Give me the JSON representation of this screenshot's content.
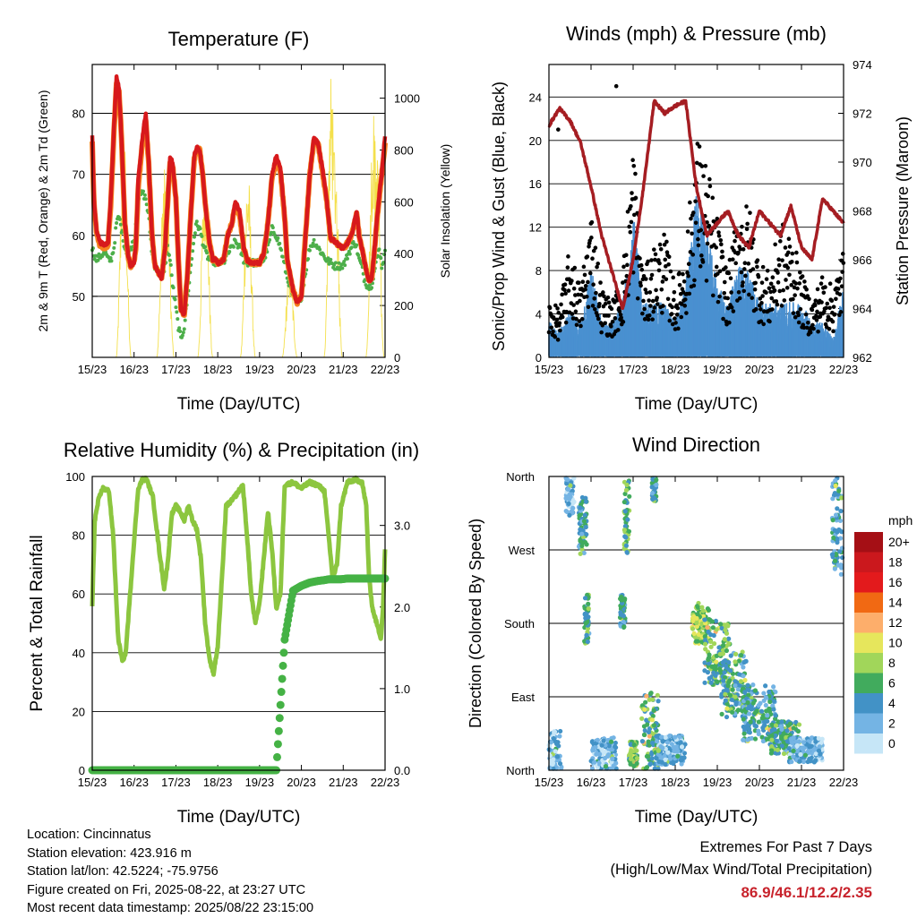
{
  "colors": {
    "temp_red": "#d7191c",
    "temp_orange": "#f58220",
    "dewpoint_green": "#4daf4a",
    "solar_yellow": "#f4e04d",
    "wind_blue": "#4a90d0",
    "gust_black": "#000000",
    "pressure_maroon": "#a51d22",
    "rh_green": "#8cc63f",
    "precip_green": "#45b245",
    "extremes_red": "#c8232c"
  },
  "time_ticks": [
    "15/23",
    "16/23",
    "17/23",
    "18/23",
    "19/23",
    "20/23",
    "21/23",
    "22/23"
  ],
  "chart_data": [
    {
      "id": "temperature",
      "type": "line",
      "title": "Temperature (F)",
      "xlabel": "Time (Day/UTC)",
      "ylabel": "2m & 9m T (Red, Orange) & 2m Td (Green)",
      "y2label": "Solar Insolation (Yellow)",
      "ylim": [
        40,
        88
      ],
      "yticks": [
        50,
        60,
        70,
        80
      ],
      "y2lim": [
        0,
        1130
      ],
      "y2ticks": [
        0,
        200,
        400,
        600,
        800,
        1000
      ],
      "x_day_offsets": [
        0,
        0.04,
        0.1,
        0.18,
        0.25,
        0.32,
        0.38,
        0.45,
        0.52,
        0.58,
        0.64,
        0.7,
        0.78,
        0.86,
        0.92,
        1.0,
        1.04,
        1.1,
        1.2,
        1.28,
        1.35,
        1.43,
        1.5,
        1.58,
        1.66,
        1.74,
        1.8,
        1.86,
        1.92,
        2.0,
        2.06,
        2.12,
        2.2,
        2.28,
        2.36,
        2.44,
        2.5,
        2.57,
        2.64,
        2.72,
        2.8,
        2.88,
        2.94,
        3.0,
        3.06,
        3.14,
        3.24,
        3.34,
        3.42,
        3.52,
        3.62,
        3.7,
        3.8,
        3.9,
        4.0,
        4.1,
        4.2,
        4.3,
        4.4,
        4.5,
        4.6,
        4.66,
        4.72,
        4.8,
        4.9,
        5.0,
        5.1,
        5.2,
        5.3,
        5.4,
        5.5,
        5.6,
        5.7,
        5.8,
        5.88,
        5.96,
        6.04,
        6.12,
        6.2,
        6.26,
        6.32,
        6.38,
        6.44,
        6.5,
        6.56,
        6.62,
        6.68,
        6.74,
        6.8,
        6.86,
        6.92,
        7.0
      ],
      "series": [
        {
          "name": "2m T",
          "values": [
            76.5,
            66,
            61,
            59,
            58.5,
            58.5,
            59,
            67,
            78,
            86,
            84,
            76,
            62,
            56.5,
            55,
            55.5,
            58,
            69,
            76,
            80,
            72,
            60,
            55,
            54,
            53,
            58,
            65,
            72.5,
            72,
            66,
            56,
            48,
            47,
            54,
            64,
            73,
            74.5,
            74,
            70,
            64,
            59,
            56,
            56,
            55.5,
            55.5,
            56,
            60,
            62,
            65.5,
            64,
            58,
            56,
            55.5,
            55.5,
            55.5,
            57,
            62,
            70,
            73,
            71,
            63,
            56,
            54,
            51,
            49,
            50,
            60,
            70,
            76,
            75,
            71,
            66,
            59.5,
            59,
            58.5,
            58,
            58,
            59,
            60,
            62,
            64,
            60,
            58,
            56,
            54,
            52.5,
            53,
            57,
            62,
            66.5,
            70,
            76.5
          ]
        },
        {
          "name": "9m T",
          "values": [
            75.5,
            65.5,
            60.5,
            58.5,
            58,
            58,
            58.5,
            66,
            77,
            85,
            83.5,
            76,
            62,
            56.5,
            55,
            55.5,
            57.5,
            68,
            75,
            79,
            71.5,
            60,
            55,
            54,
            53,
            58,
            65,
            72,
            71.5,
            66,
            56,
            48,
            47,
            54,
            64,
            72.5,
            74,
            74,
            70,
            64,
            59,
            56,
            56,
            55.5,
            55.5,
            56,
            60,
            62,
            65,
            63.5,
            58,
            56,
            55.5,
            55.5,
            55.5,
            57,
            62,
            69.5,
            72.5,
            70.5,
            63,
            56,
            54,
            51,
            49,
            50,
            60,
            70,
            75.5,
            75,
            70.5,
            66,
            59.5,
            59,
            58.5,
            58,
            58,
            59,
            60,
            62,
            63.5,
            60,
            58,
            56,
            54,
            52.5,
            53,
            57,
            62,
            66,
            70,
            75
          ]
        },
        {
          "name": "2m Td",
          "values": [
            58,
            57,
            56,
            56.5,
            57,
            57,
            56,
            56,
            58,
            62,
            63,
            61,
            58,
            57,
            58,
            59,
            62,
            66,
            67,
            66,
            63,
            57,
            55,
            54,
            53,
            55,
            58,
            56,
            52,
            48,
            45,
            43,
            45,
            50,
            55,
            60,
            62,
            61,
            59,
            57,
            56,
            56,
            55.5,
            55.5,
            55.5,
            55.5,
            57,
            58,
            59,
            58,
            56,
            55.5,
            55.5,
            55.5,
            55.5,
            56,
            58,
            61,
            60,
            58,
            55,
            53,
            52,
            50,
            49,
            50,
            54,
            58,
            59,
            58,
            57,
            56,
            55.5,
            55,
            55,
            55,
            55.5,
            57,
            58,
            59,
            58,
            56,
            55,
            53,
            52,
            51.5,
            52,
            54,
            56,
            58,
            55,
            57
          ]
        }
      ],
      "solar_peaks": [
        {
          "day": 0.75,
          "value": 900
        },
        {
          "day": 1.72,
          "value": 760
        },
        {
          "day": 1.78,
          "value": 650
        },
        {
          "day": 2.7,
          "value": 780
        },
        {
          "day": 3.72,
          "value": 740
        },
        {
          "day": 4.72,
          "value": 380
        },
        {
          "day": 5.72,
          "value": 1110
        },
        {
          "day": 5.8,
          "value": 850
        },
        {
          "day": 6.72,
          "value": 980
        },
        {
          "day": 6.8,
          "value": 820
        }
      ]
    },
    {
      "id": "winds",
      "type": "scatter",
      "title": "Winds (mph) & Pressure (mb)",
      "xlabel": "Time (Day/UTC)",
      "ylabel": "Sonic/Prop Wind & Gust (Blue, Black)",
      "y2label": "Station Pressure (Maroon)",
      "ylim": [
        0,
        27
      ],
      "yticks": [
        0,
        4,
        8,
        12,
        16,
        20,
        24
      ],
      "y2lim": [
        962,
        974
      ],
      "y2ticks": [
        962,
        964,
        966,
        968,
        970,
        972,
        974
      ],
      "x_day_offsets": [
        0,
        0.25,
        0.5,
        0.75,
        1.0,
        1.25,
        1.5,
        1.75,
        2.0,
        2.25,
        2.5,
        2.75,
        3.0,
        3.25,
        3.5,
        3.75,
        4.0,
        4.25,
        4.5,
        4.75,
        5.0,
        5.25,
        5.5,
        5.75,
        6.0,
        6.25,
        6.5,
        6.75,
        7.0
      ],
      "series": [
        {
          "name": "Sonic/Prop Wind",
          "values": [
            2,
            1.5,
            2.5,
            2,
            5,
            2,
            2,
            3,
            8,
            3,
            3,
            3,
            2,
            4,
            9,
            7,
            4,
            3,
            5,
            5,
            3,
            3,
            3,
            3,
            3,
            2,
            2,
            1,
            4
          ]
        },
        {
          "name": "Gust",
          "values": [
            4,
            3.5,
            8,
            5,
            11,
            5,
            4,
            6,
            16,
            6,
            8,
            9,
            5,
            8,
            16,
            14,
            10,
            6,
            11,
            11,
            7,
            6,
            10,
            9,
            6,
            4,
            6,
            5,
            8
          ]
        },
        {
          "name": "Station Pressure",
          "values": [
            971.5,
            972.2,
            971.7,
            970.8,
            969,
            967,
            965.5,
            964,
            966,
            969,
            972.5,
            972,
            972.3,
            972.5,
            969,
            967,
            967.5,
            968,
            967,
            966.5,
            968,
            967.5,
            967,
            968.2,
            966.5,
            966,
            968.5,
            968,
            967.5
          ]
        }
      ]
    },
    {
      "id": "humidity",
      "type": "line",
      "title": "Relative Humidity (%) & Precipitation (in)",
      "xlabel": "Time (Day/UTC)",
      "ylabel": "Percent & Total Rainfall",
      "ylim": [
        0,
        100
      ],
      "yticks": [
        0,
        20,
        40,
        60,
        80,
        100
      ],
      "y2lim": [
        0,
        3.6
      ],
      "y2ticks": [
        "0.0",
        "1.0",
        "2.0",
        "3.0"
      ],
      "x_day_offsets": [
        0,
        0.06,
        0.15,
        0.25,
        0.4,
        0.5,
        0.62,
        0.72,
        0.8,
        0.88,
        1.0,
        1.1,
        1.2,
        1.3,
        1.45,
        1.6,
        1.72,
        1.8,
        1.9,
        2.0,
        2.1,
        2.2,
        2.3,
        2.4,
        2.5,
        2.6,
        2.7,
        2.8,
        2.9,
        3.0,
        3.1,
        3.2,
        3.35,
        3.5,
        3.6,
        3.7,
        3.8,
        3.9,
        4.0,
        4.1,
        4.2,
        4.3,
        4.4,
        4.5,
        4.6,
        4.8,
        5.0,
        5.2,
        5.4,
        5.55,
        5.65,
        5.75,
        5.85,
        5.95,
        6.1,
        6.3,
        6.45,
        6.55,
        6.62,
        6.7,
        6.8,
        6.9,
        6.95,
        7.0
      ],
      "series": [
        {
          "name": "Relative Humidity",
          "values": [
            56,
            85,
            92,
            96,
            95,
            80,
            45,
            37,
            40,
            55,
            78,
            96,
            99,
            99,
            93,
            75,
            62,
            70,
            87,
            90,
            88,
            85,
            90,
            85,
            82,
            72,
            50,
            38,
            33,
            42,
            65,
            90,
            92,
            95,
            97,
            80,
            60,
            50,
            57,
            72,
            88,
            75,
            55,
            60,
            97,
            98,
            96,
            98,
            97,
            95,
            80,
            65,
            70,
            90,
            98,
            99,
            98,
            90,
            65,
            55,
            50,
            45,
            55,
            75
          ]
        },
        {
          "name": "Total Precipitation",
          "values": [
            0,
            0,
            0,
            0,
            0,
            0,
            0,
            0,
            0,
            0,
            0,
            0,
            0,
            0,
            0,
            0,
            0,
            0,
            0,
            0,
            0,
            0,
            0,
            0,
            0,
            0,
            0,
            0,
            0,
            0,
            0,
            0,
            0,
            0,
            0,
            0,
            0,
            0,
            0,
            0,
            0,
            0,
            0,
            0.8,
            1.6,
            2.2,
            2.26,
            2.3,
            2.32,
            2.33,
            2.34,
            2.34,
            2.34,
            2.34,
            2.35,
            2.35,
            2.35,
            2.35,
            2.35,
            2.35,
            2.35,
            2.35,
            2.35,
            2.35
          ]
        }
      ]
    },
    {
      "id": "direction",
      "type": "scatter",
      "title": "Wind Direction",
      "xlabel": "Time (Day/UTC)",
      "ylabel": "Direction (Colored By Speed)",
      "yticks": [
        "North",
        "East",
        "South",
        "West",
        "North"
      ],
      "ylim": [
        0,
        360
      ],
      "legend_title": "mph",
      "legend_labels": [
        "20+",
        "18",
        "16",
        "14",
        "12",
        "10",
        "8",
        "6",
        "4",
        "2",
        "0"
      ],
      "legend_colors": [
        "#a50f15",
        "#cb181d",
        "#e31a1c",
        "#f16913",
        "#fdae6b",
        "#e6e65c",
        "#a1d65a",
        "#41ab5d",
        "#4292c6",
        "#74b4e4",
        "#c6e6f7"
      ],
      "clusters": [
        {
          "x": 0.1,
          "dir": 25,
          "spread_x": 0.2,
          "spread_dir": 25,
          "speed": 1.5
        },
        {
          "x": 0.5,
          "dir": 335,
          "spread_x": 0.1,
          "spread_dir": 25,
          "speed": 2
        },
        {
          "x": 0.8,
          "dir": 300,
          "spread_x": 0.1,
          "spread_dir": 35,
          "speed": 5
        },
        {
          "x": 0.9,
          "dir": 185,
          "spread_x": 0.06,
          "spread_dir": 30,
          "speed": 5
        },
        {
          "x": 1.3,
          "dir": 20,
          "spread_x": 0.3,
          "spread_dir": 20,
          "speed": 2
        },
        {
          "x": 1.75,
          "dir": 195,
          "spread_x": 0.06,
          "spread_dir": 20,
          "speed": 4
        },
        {
          "x": 1.85,
          "dir": 310,
          "spread_x": 0.06,
          "spread_dir": 45,
          "speed": 6
        },
        {
          "x": 2.0,
          "dir": 20,
          "spread_x": 0.1,
          "spread_dir": 15,
          "speed": 7
        },
        {
          "x": 2.4,
          "dir": 45,
          "spread_x": 0.2,
          "spread_dir": 50,
          "speed": 6
        },
        {
          "x": 2.5,
          "dir": 345,
          "spread_x": 0.05,
          "spread_dir": 15,
          "speed": 5
        },
        {
          "x": 2.9,
          "dir": 25,
          "spread_x": 0.35,
          "spread_dir": 18,
          "speed": 2.5
        },
        {
          "x": 3.6,
          "dir": 180,
          "spread_x": 0.2,
          "spread_dir": 25,
          "speed": 8
        },
        {
          "x": 4.0,
          "dir": 145,
          "spread_x": 0.3,
          "spread_dir": 40,
          "speed": 6
        },
        {
          "x": 4.4,
          "dir": 105,
          "spread_x": 0.3,
          "spread_dir": 40,
          "speed": 5
        },
        {
          "x": 5.0,
          "dir": 70,
          "spread_x": 0.4,
          "spread_dir": 35,
          "speed": 4
        },
        {
          "x": 5.6,
          "dir": 40,
          "spread_x": 0.35,
          "spread_dir": 20,
          "speed": 5
        },
        {
          "x": 6.1,
          "dir": 25,
          "spread_x": 0.4,
          "spread_dir": 15,
          "speed": 2.5
        },
        {
          "x": 6.85,
          "dir": 300,
          "spread_x": 0.12,
          "spread_dir": 60,
          "speed": 4
        }
      ]
    }
  ],
  "footer": {
    "location": "Location: Cincinnatus",
    "elevation": "Station elevation: 423.916 m",
    "latlon": "Station lat/lon: 42.5224; -75.9756",
    "created": "Figure created on Fri, 2025-08-22, at 23:27 UTC",
    "recent": "Most recent data timestamp: 2025/08/22 23:15:00"
  },
  "extremes": {
    "title": "Extremes For Past 7 Days",
    "subtitle": "(High/Low/Max Wind/Total Precipitation)",
    "values": "86.9/46.1/12.2/2.35"
  }
}
